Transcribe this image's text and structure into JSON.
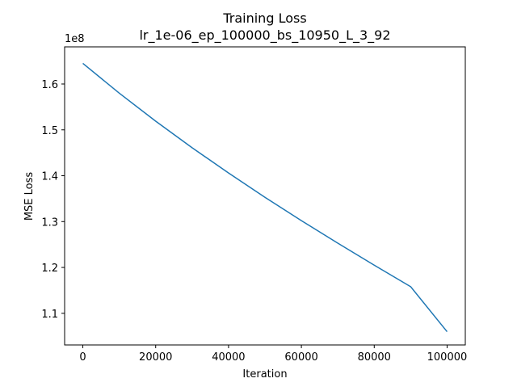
{
  "chart_data": {
    "type": "line",
    "title": "Training Loss",
    "subtitle": "lr_1e-06_ep_100000_bs_10950_L_3_92",
    "xlabel": "Iteration",
    "ylabel": "MSE Loss",
    "y_offset_label": "1e8",
    "xlim": [
      -5000,
      105000
    ],
    "ylim": [
      1.031,
      1.681
    ],
    "x_ticks": [
      0,
      20000,
      40000,
      60000,
      80000,
      100000
    ],
    "x_tick_labels": [
      "0",
      "20000",
      "40000",
      "60000",
      "80000",
      "100000"
    ],
    "y_ticks": [
      1.1,
      1.2,
      1.3,
      1.4,
      1.5,
      1.6
    ],
    "y_tick_labels": [
      "1.1",
      "1.2",
      "1.3",
      "1.4",
      "1.5",
      "1.6"
    ],
    "grid": false,
    "series": [
      {
        "color": "#1f77b4",
        "x": [
          0,
          10000,
          20000,
          30000,
          40000,
          50000,
          60000,
          70000,
          80000,
          90000,
          100000
        ],
        "values": [
          1.645,
          1.58,
          1.519,
          1.461,
          1.406,
          1.353,
          1.302,
          1.253,
          1.205,
          1.158,
          1.06
        ]
      }
    ]
  }
}
